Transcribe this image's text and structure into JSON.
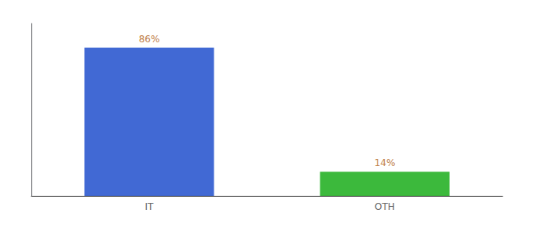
{
  "chart_data": {
    "type": "bar",
    "categories": [
      "IT",
      "OTH"
    ],
    "values": [
      86,
      14
    ],
    "value_labels": [
      "86%",
      "14%"
    ],
    "colors": [
      "#4169d4",
      "#3cb93c"
    ],
    "ylim": [
      0,
      100
    ],
    "data_labels": true,
    "tick_labels": "x",
    "grid": false
  }
}
